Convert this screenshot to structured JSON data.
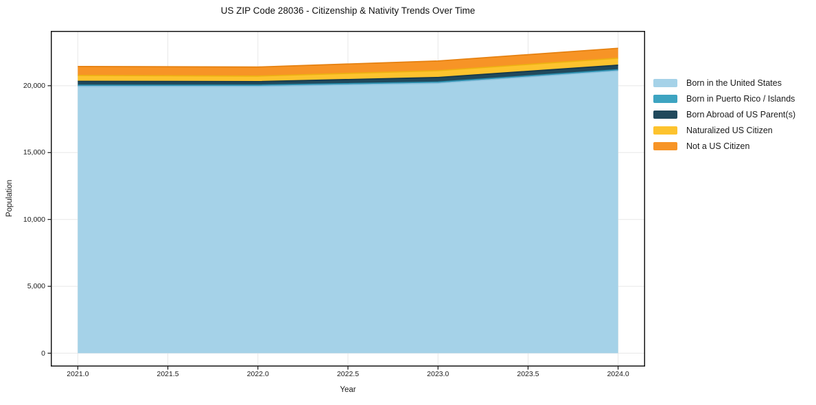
{
  "chart_data": {
    "type": "area",
    "stacked": true,
    "title": "US ZIP Code 28036 - Citizenship & Nativity Trends Over Time",
    "xlabel": "Year",
    "ylabel": "Population",
    "x": [
      2021,
      2022,
      2023,
      2024
    ],
    "series": [
      {
        "name": "Born in the United States",
        "color": "#a5d2e8",
        "edge": "#8abfdc",
        "values": [
          19950,
          19955,
          20190,
          21120
        ]
      },
      {
        "name": "Born in Puerto Rico / Islands",
        "color": "#3da4c1",
        "edge": "#2b8fae",
        "values": [
          90,
          90,
          85,
          80
        ]
      },
      {
        "name": "Born Abroad of US Parent(s)",
        "color": "#20495c",
        "edge": "#15384a",
        "values": [
          290,
          265,
          345,
          340
        ]
      },
      {
        "name": "Naturalized US Citizen",
        "color": "#fdc32e",
        "edge": "#edb112",
        "values": [
          440,
          410,
          505,
          520
        ]
      },
      {
        "name": "Not a US Citizen",
        "color": "#f79426",
        "edge": "#e5800f",
        "values": [
          670,
          680,
          725,
          740
        ]
      }
    ],
    "totals": [
      21440,
      21400,
      21850,
      22800
    ],
    "xlim": [
      2020.85,
      2024.15
    ],
    "ylim": [
      -1000,
      24100
    ],
    "xticks": {
      "values": [
        2021.0,
        2021.5,
        2022.0,
        2022.5,
        2023.0,
        2023.5,
        2024.0
      ],
      "labels": [
        "2021.0",
        "2021.5",
        "2022.0",
        "2022.5",
        "2023.0",
        "2023.5",
        "2024.0"
      ]
    },
    "yticks": {
      "values": [
        0,
        5000,
        10000,
        15000,
        20000
      ],
      "labels": [
        "0",
        "5,000",
        "10,000",
        "15,000",
        "20,000"
      ]
    },
    "grid": true,
    "grid_color": "#e7e7e7",
    "frame_color": "#141414",
    "text_color": "#1a1a1a",
    "legend_position": "right-outside"
  }
}
